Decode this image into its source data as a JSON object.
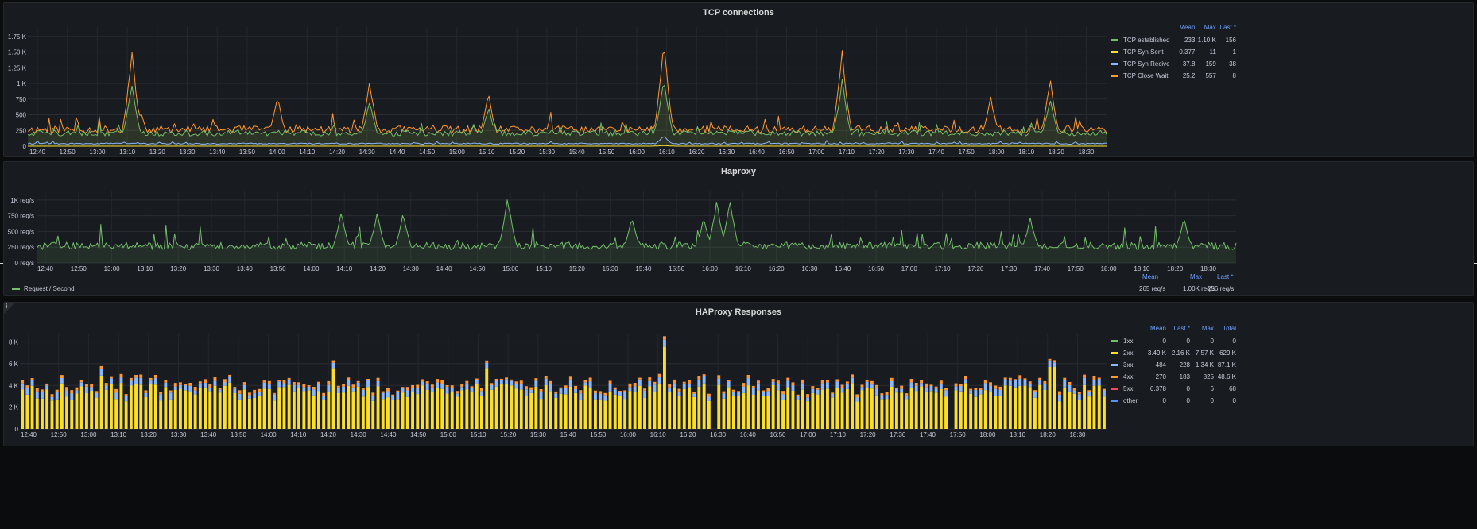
{
  "panels": {
    "tcp": {
      "title": "TCP connections",
      "legend_headers": [
        "Mean",
        "Max",
        "Last *"
      ],
      "legend": [
        {
          "name": "TCP established",
          "color": "#73bf69",
          "mean": "233",
          "max": "1.10 K",
          "last": "156"
        },
        {
          "name": "TCP Syn Sent",
          "color": "#fade2a",
          "mean": "0.377",
          "max": "11",
          "last": "1"
        },
        {
          "name": "TCP Syn Recive",
          "color": "#8ab8ff",
          "mean": "37.8",
          "max": "159",
          "last": "38"
        },
        {
          "name": "TCP Close Wait",
          "color": "#ff9830",
          "mean": "25.2",
          "max": "557",
          "last": "8"
        }
      ],
      "y_ticks": [
        "0",
        "250",
        "500",
        "750",
        "1 K",
        "1.25 K",
        "1.50 K",
        "1.75 K"
      ],
      "x_ticks": [
        "12:40",
        "12:50",
        "13:00",
        "13:10",
        "13:20",
        "13:30",
        "13:40",
        "13:50",
        "14:00",
        "14:10",
        "14:20",
        "14:30",
        "14:40",
        "14:50",
        "15:00",
        "15:10",
        "15:20",
        "15:30",
        "15:40",
        "15:50",
        "16:00",
        "16:10",
        "16:20",
        "16:30",
        "16:40",
        "16:50",
        "17:00",
        "17:10",
        "17:20",
        "17:30",
        "17:40",
        "17:50",
        "18:00",
        "18:10",
        "18:20",
        "18:30"
      ]
    },
    "haproxy": {
      "title": "Haproxy",
      "y_ticks": [
        "0 req/s",
        "250 req/s",
        "500 req/s",
        "750 req/s",
        "1K req/s"
      ],
      "x_ticks": [
        "12:40",
        "12:50",
        "13:00",
        "13:10",
        "13:20",
        "13:30",
        "13:40",
        "13:50",
        "14:00",
        "14:10",
        "14:20",
        "14:30",
        "14:40",
        "14:50",
        "15:00",
        "15:10",
        "15:20",
        "15:30",
        "15:40",
        "15:50",
        "16:00",
        "16:10",
        "16:20",
        "16:30",
        "16:40",
        "16:50",
        "17:00",
        "17:10",
        "17:20",
        "17:30",
        "17:40",
        "17:50",
        "18:00",
        "18:10",
        "18:20",
        "18:30"
      ],
      "legend_headers": [
        "Mean",
        "Max",
        "Last *"
      ],
      "legend": {
        "name": "Request / Second",
        "color": "#73bf69",
        "mean": "265 req/s",
        "max": "1.00K req/s",
        "last": "256 req/s"
      }
    },
    "responses": {
      "title": "HAProxy Responses",
      "info_icon": "i",
      "legend_headers": [
        "Mean",
        "Last *",
        "Max",
        "Total"
      ],
      "legend": [
        {
          "name": "1xx",
          "color": "#73bf69",
          "mean": "0",
          "last": "0",
          "max": "0",
          "total": "0"
        },
        {
          "name": "2xx",
          "color": "#fade2a",
          "mean": "3.49 K",
          "last": "2.16 K",
          "max": "7.57 K",
          "total": "629 K"
        },
        {
          "name": "3xx",
          "color": "#8ab8ff",
          "mean": "484",
          "last": "228",
          "max": "1.34 K",
          "total": "87.1 K"
        },
        {
          "name": "4xx",
          "color": "#ff9830",
          "mean": "270",
          "last": "183",
          "max": "825",
          "total": "48.6 K"
        },
        {
          "name": "5xx",
          "color": "#f2495c",
          "mean": "0.378",
          "last": "0",
          "max": "6",
          "total": "68"
        },
        {
          "name": "other",
          "color": "#5794f2",
          "mean": "0",
          "last": "0",
          "max": "0",
          "total": "0"
        }
      ],
      "y_ticks": [
        "0",
        "2 K",
        "4 K",
        "6 K",
        "8 K"
      ],
      "x_ticks": [
        "12:40",
        "12:50",
        "13:00",
        "13:10",
        "13:20",
        "13:30",
        "13:40",
        "13:50",
        "14:00",
        "14:10",
        "14:20",
        "14:30",
        "14:40",
        "14:50",
        "15:00",
        "15:10",
        "15:20",
        "15:30",
        "15:40",
        "15:50",
        "16:00",
        "16:10",
        "16:20",
        "16:30",
        "16:40",
        "16:50",
        "17:00",
        "17:10",
        "17:20",
        "17:30",
        "17:40",
        "17:50",
        "18:00",
        "18:10",
        "18:20",
        "18:30"
      ]
    }
  },
  "chart_data": [
    {
      "type": "line",
      "title": "TCP connections",
      "x_range": [
        "12:36",
        "18:39"
      ],
      "ylim": [
        0,
        1900
      ],
      "grid": true,
      "legend_placement": "right",
      "series": [
        {
          "name": "TCP Close Wait",
          "baseline": 260,
          "spikes": [
            {
              "t": "13:11",
              "v": 1530
            },
            {
              "t": "13:14",
              "v": 520
            },
            {
              "t": "14:00",
              "v": 780
            },
            {
              "t": "14:31",
              "v": 1030
            },
            {
              "t": "15:11",
              "v": 800
            },
            {
              "t": "16:10",
              "v": 1700
            },
            {
              "t": "17:10",
              "v": 1510
            },
            {
              "t": "18:00",
              "v": 760
            },
            {
              "t": "18:20",
              "v": 1050
            }
          ]
        },
        {
          "name": "TCP established",
          "baseline": 200,
          "spikes": [
            {
              "t": "13:11",
              "v": 1000
            },
            {
              "t": "14:31",
              "v": 700
            },
            {
              "t": "15:11",
              "v": 600
            },
            {
              "t": "16:10",
              "v": 1100
            },
            {
              "t": "17:10",
              "v": 1050
            },
            {
              "t": "18:20",
              "v": 750
            }
          ]
        },
        {
          "name": "TCP Syn Recive",
          "baseline": 40,
          "spikes": [
            {
              "t": "16:10",
              "v": 159
            }
          ]
        },
        {
          "name": "TCP Syn Sent",
          "baseline": 0.4,
          "spikes": [
            {
              "t": "16:10",
              "v": 11
            }
          ]
        }
      ]
    },
    {
      "type": "line",
      "title": "Haproxy",
      "x_range": [
        "12:36",
        "18:43"
      ],
      "ylim": [
        0,
        1150
      ],
      "grid": true,
      "legend_placement": "bottom",
      "series": [
        {
          "name": "Request / Second",
          "baseline": 265,
          "spikes": [
            {
              "t": "14:09",
              "v": 780
            },
            {
              "t": "14:20",
              "v": 770
            },
            {
              "t": "14:28",
              "v": 750
            },
            {
              "t": "15:00",
              "v": 1000
            },
            {
              "t": "15:38",
              "v": 700
            },
            {
              "t": "16:00",
              "v": 690
            },
            {
              "t": "16:04",
              "v": 950
            },
            {
              "t": "16:08",
              "v": 960
            },
            {
              "t": "17:40",
              "v": 690
            },
            {
              "t": "18:27",
              "v": 680
            }
          ]
        }
      ]
    },
    {
      "type": "bar",
      "title": "HAProxy Responses",
      "stacked": true,
      "x_range": [
        "12:36",
        "18:39"
      ],
      "ylim": [
        0,
        8700
      ],
      "grid": true,
      "legend_placement": "right",
      "series": [
        {
          "name": "2xx",
          "mean": 3490,
          "max": 7570
        },
        {
          "name": "3xx",
          "mean": 484,
          "max": 1340
        },
        {
          "name": "4xx",
          "mean": 270,
          "max": 825
        },
        {
          "name": "5xx",
          "mean": 0.378,
          "max": 6
        }
      ]
    }
  ]
}
